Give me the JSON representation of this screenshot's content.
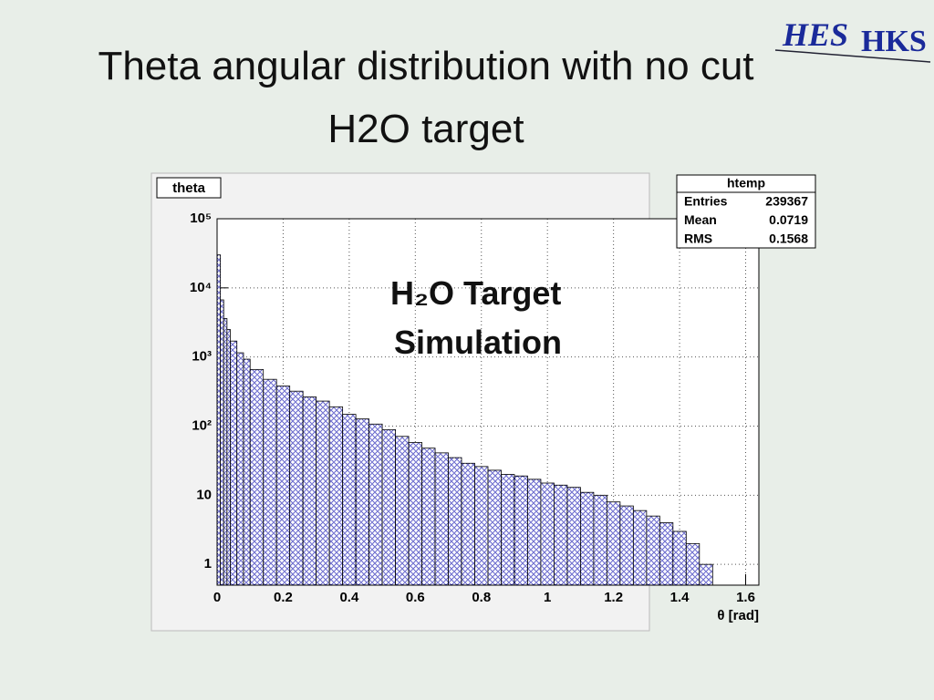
{
  "slide": {
    "title_lines": [
      "Theta angular distribution with no cut",
      "H2O target"
    ],
    "logo": [
      "HES",
      "HKS"
    ]
  },
  "chart_data": {
    "type": "histogram",
    "title": "theta",
    "x_label": "θ [rad]",
    "annotation": [
      "H₂O Target",
      "Simulation"
    ],
    "stats": {
      "title": "htemp",
      "rows": [
        [
          "Entries",
          "239367"
        ],
        [
          "Mean",
          "0.0719"
        ],
        [
          "RMS",
          "0.1568"
        ]
      ]
    },
    "bins": [
      0,
      0.01,
      0.02,
      0.03,
      0.04,
      0.06,
      0.08,
      0.1,
      0.14,
      0.18,
      0.22,
      0.26,
      0.3,
      0.34,
      0.38,
      0.42,
      0.46,
      0.5,
      0.54,
      0.58,
      0.62,
      0.66,
      0.7,
      0.74,
      0.78,
      0.82,
      0.86,
      0.9,
      0.94,
      0.98,
      1.02,
      1.06,
      1.1,
      1.14,
      1.18,
      1.22,
      1.26,
      1.3,
      1.34,
      1.38,
      1.42,
      1.46,
      1.5
    ],
    "values": [
      30000,
      6700,
      3600,
      2500,
      1700,
      1150,
      930,
      660,
      475,
      380,
      320,
      265,
      230,
      190,
      148,
      127,
      107,
      89,
      71,
      58,
      48,
      41,
      35,
      29,
      26,
      23,
      20,
      19,
      17,
      15,
      14,
      13,
      11,
      10,
      8,
      7,
      6,
      5,
      4,
      3,
      2,
      1
    ],
    "color": "#1a1aa8",
    "xlim": [
      0,
      1.64
    ],
    "xticks": [
      0,
      0.2,
      0.4,
      0.6,
      0.8,
      1,
      1.2,
      1.4,
      1.6
    ],
    "ylim": [
      0.5,
      100000
    ],
    "log_y": true,
    "yticks": [
      {
        "value": 100000,
        "label": "10⁵"
      },
      {
        "value": 10000,
        "label": "10⁴"
      },
      {
        "value": 1000,
        "label": "10³"
      },
      {
        "value": 100,
        "label": "10²"
      },
      10,
      1
    ],
    "grid": true
  }
}
